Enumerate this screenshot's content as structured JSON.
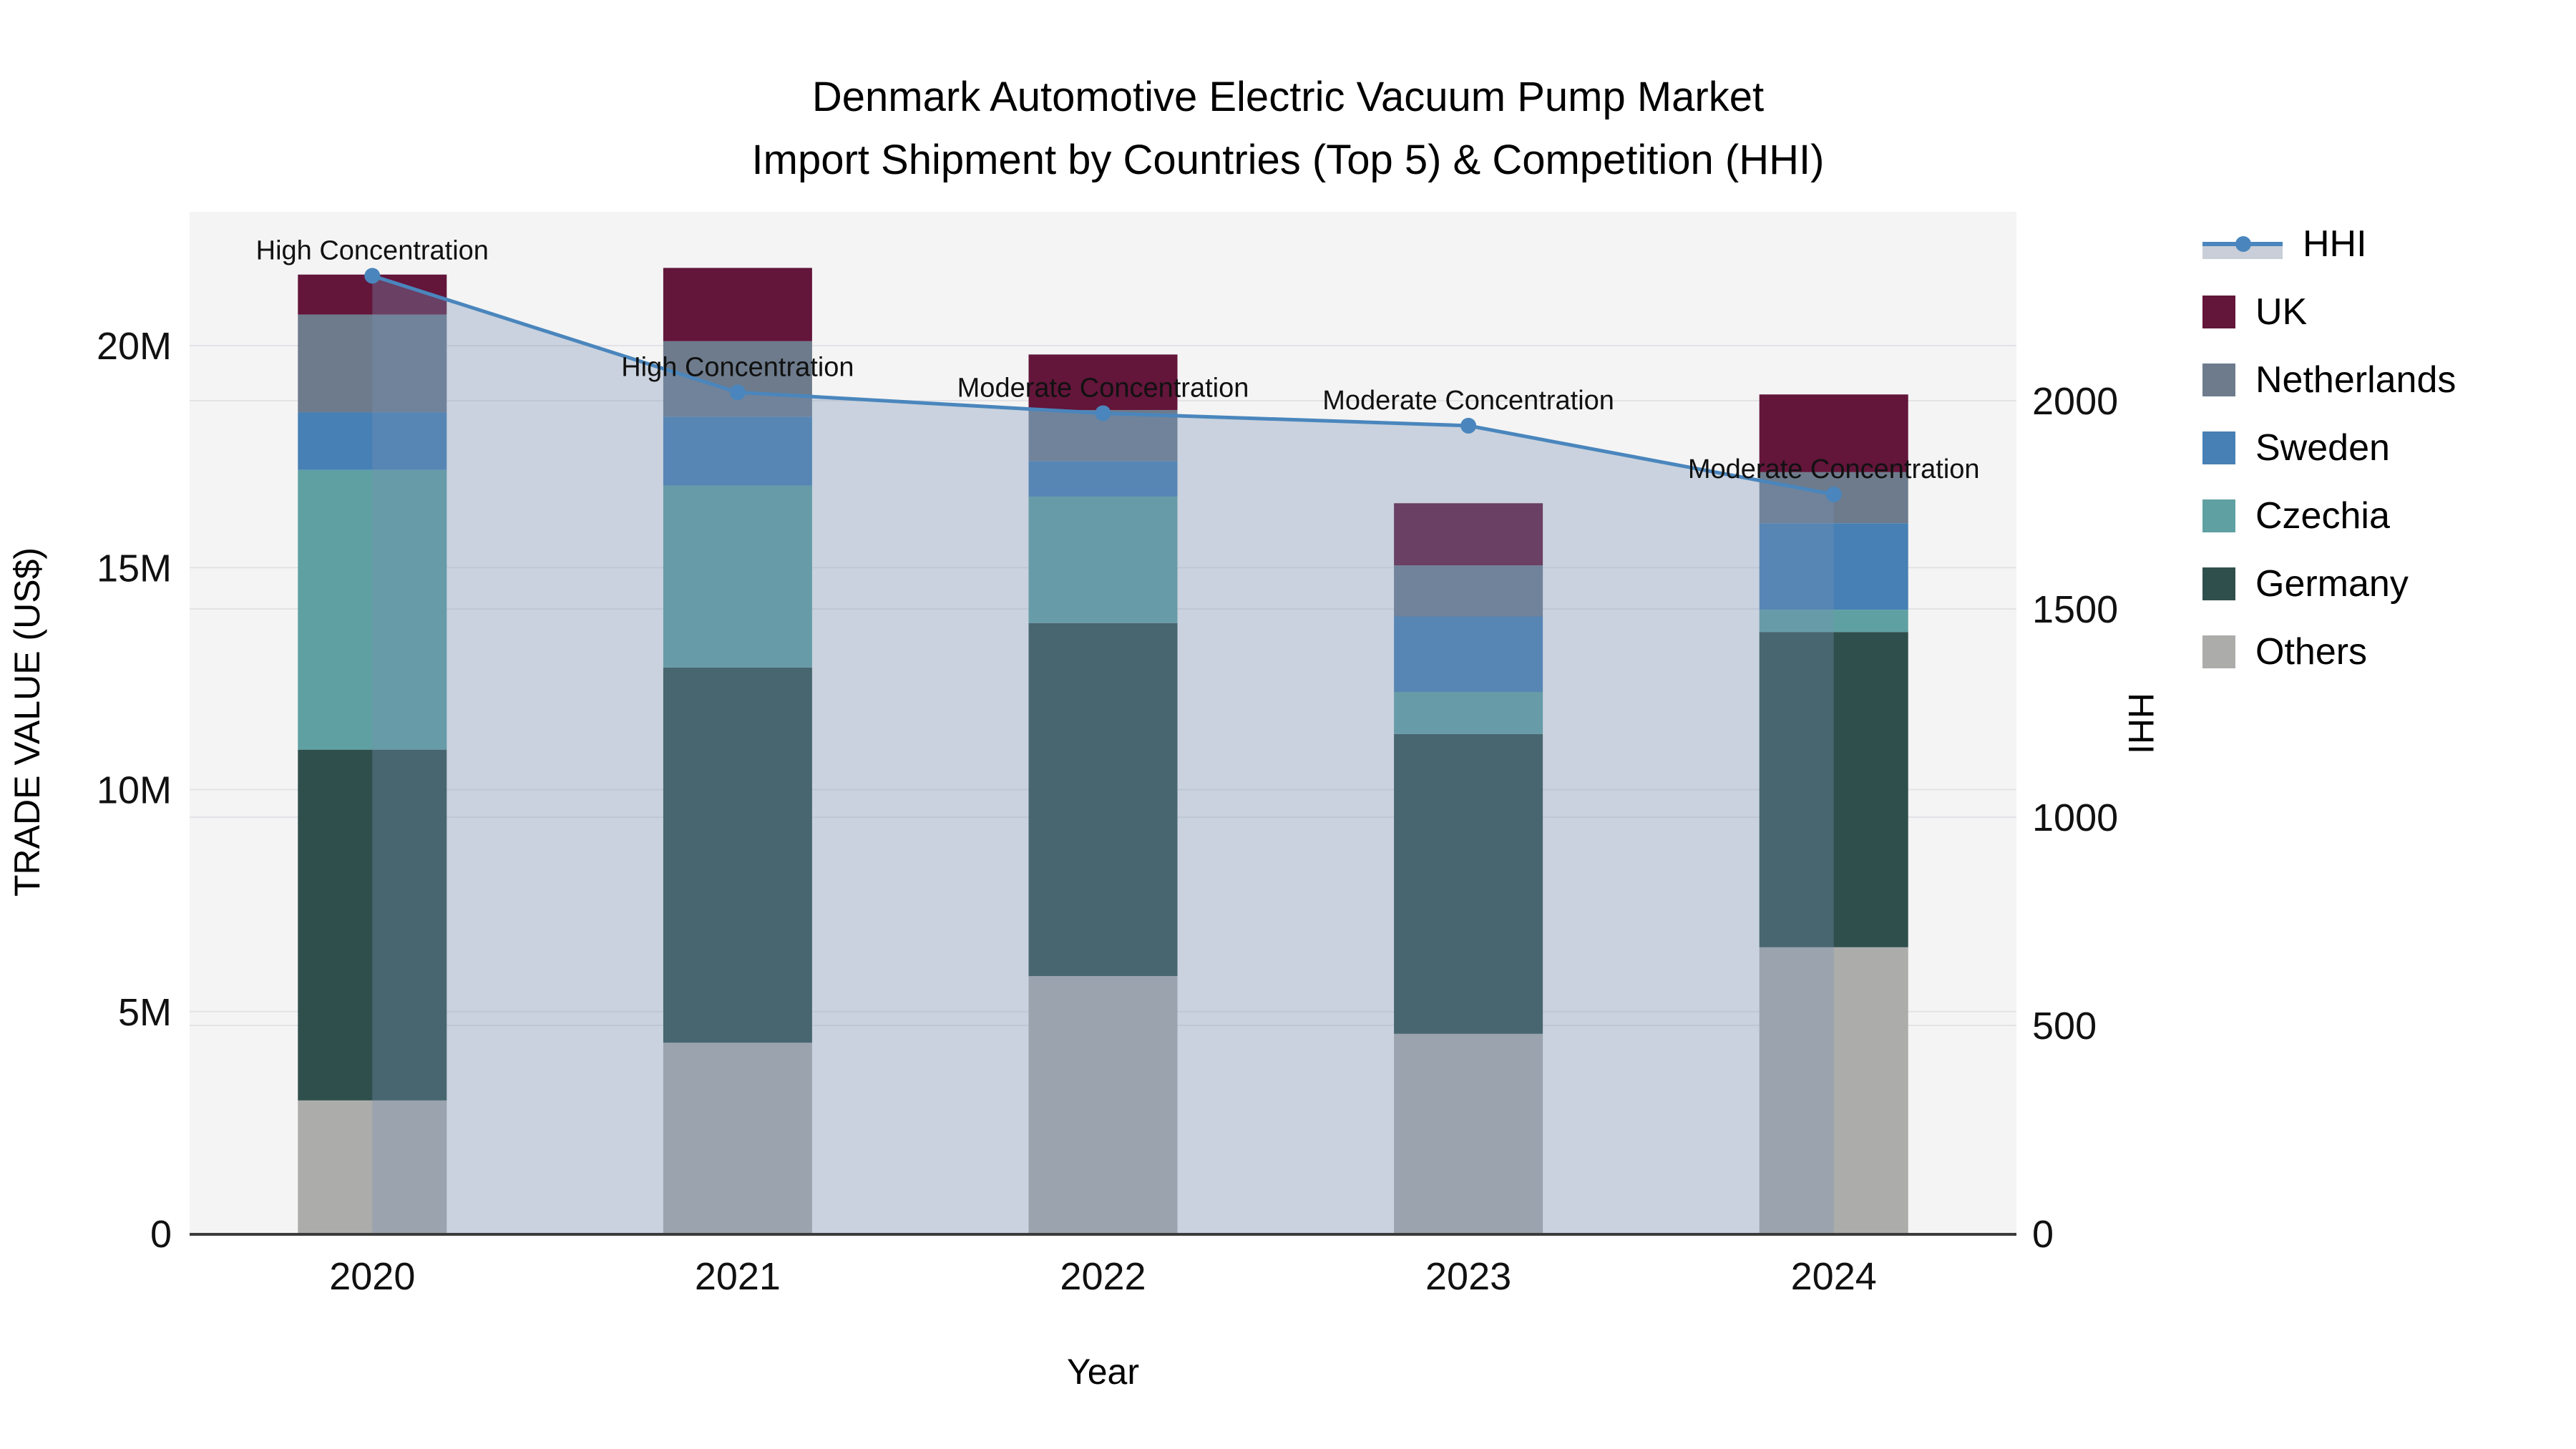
{
  "title": {
    "line1": "Denmark Automotive Electric Vacuum Pump Market",
    "line2": "Import Shipment by Countries (Top 5) & Competition (HHI)"
  },
  "axes": {
    "y_left": {
      "title": "TRADE VALUE (US$)",
      "ticks": [
        "0",
        "5M",
        "10M",
        "15M",
        "20M"
      ],
      "tick_values_millions": [
        0,
        5,
        10,
        15,
        20
      ]
    },
    "y_right": {
      "title": "HHI",
      "ticks": [
        "0",
        "500",
        "1000",
        "1500",
        "2000"
      ],
      "tick_values": [
        0,
        500,
        1000,
        1500,
        2000
      ]
    },
    "x": {
      "title": "Year",
      "ticks": [
        "2020",
        "2021",
        "2022",
        "2023",
        "2024"
      ]
    }
  },
  "legend": {
    "entries": [
      {
        "label": "HHI",
        "type": "line",
        "color": "#4a86bd"
      },
      {
        "label": "UK",
        "type": "square",
        "color": "#63153a"
      },
      {
        "label": "Netherlands",
        "type": "square",
        "color": "#6d7b8c"
      },
      {
        "label": "Sweden",
        "type": "square",
        "color": "#4680b4"
      },
      {
        "label": "Czechia",
        "type": "square",
        "color": "#5fa0a2"
      },
      {
        "label": "Germany",
        "type": "square",
        "color": "#2f4f4c"
      },
      {
        "label": "Others",
        "type": "square",
        "color": "#acadab"
      }
    ]
  },
  "chart_data": {
    "type": "combo-stacked-bar-line",
    "categories": [
      "2020",
      "2021",
      "2022",
      "2023",
      "2024"
    ],
    "value_unit": "million US$",
    "series": [
      {
        "name": "Others",
        "color": "#acadab",
        "values": [
          3.0,
          4.3,
          5.8,
          4.5,
          6.45
        ]
      },
      {
        "name": "Germany",
        "color": "#2f4f4c",
        "values": [
          7.9,
          8.45,
          7.95,
          6.75,
          7.1
        ]
      },
      {
        "name": "Czechia",
        "color": "#5fa0a2",
        "values": [
          6.3,
          4.1,
          2.85,
          0.95,
          0.5
        ]
      },
      {
        "name": "Sweden",
        "color": "#4680b4",
        "values": [
          1.3,
          1.55,
          0.8,
          1.7,
          1.95
        ]
      },
      {
        "name": "Netherlands",
        "color": "#6d7b8c",
        "values": [
          2.2,
          1.7,
          1.15,
          1.15,
          1.15
        ]
      },
      {
        "name": "UK",
        "color": "#63153a",
        "values": [
          0.9,
          1.65,
          1.25,
          1.4,
          1.75
        ]
      }
    ],
    "stack_totals_millions": [
      21.6,
      21.75,
      19.8,
      16.45,
      18.9
    ],
    "hhi": {
      "name": "HHI",
      "values": [
        2300,
        2020,
        1970,
        1940,
        1775
      ],
      "line_color": "#4a86bd",
      "fill_color": "rgba(120,145,180,0.35)"
    },
    "annotations": [
      {
        "year": "2020",
        "text": "High Concentration"
      },
      {
        "year": "2021",
        "text": "High Concentration"
      },
      {
        "year": "2022",
        "text": "Moderate Concentration"
      },
      {
        "year": "2023",
        "text": "Moderate Concentration"
      },
      {
        "year": "2024",
        "text": "Moderate Concentration"
      }
    ],
    "ylim_left_millions": [
      0,
      23
    ],
    "ylim_right_hhi": [
      0,
      2450
    ],
    "grid": true,
    "legend_position": "right",
    "plot_bg": "#f4f4f4",
    "grid_color": "#e3e3e7",
    "axis_line_color": "#3b3b3b"
  }
}
